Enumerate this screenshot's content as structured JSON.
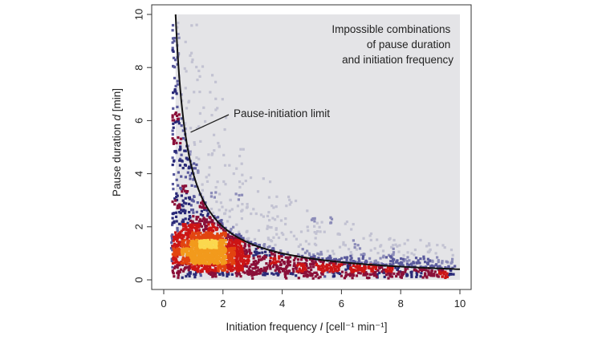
{
  "chart_data": {
    "type": "scatter",
    "xlabel": "Initiation frequency I [cell⁻¹ min⁻¹]",
    "xlabel_parts": {
      "main": "Initiation frequency ",
      "var": "I",
      "unit": "  [cell⁻¹ min⁻¹]"
    },
    "ylabel": "Pause duration d [min]",
    "ylabel_parts": {
      "main": "Pause duration ",
      "var": "d",
      "unit": " [min]"
    },
    "xlim": [
      0,
      10
    ],
    "ylim": [
      0,
      10
    ],
    "xticks": [
      "0",
      "2",
      "4",
      "6",
      "8",
      "10"
    ],
    "yticks": [
      "0",
      "2",
      "4",
      "6",
      "8",
      "10"
    ],
    "grid": false,
    "region": {
      "label_lines": [
        "Impossible combinations",
        "of pause duration",
        "and initiation frequency"
      ],
      "fill": "#e4e4e7"
    },
    "limit_curve": {
      "label": "Pause-initiation limit",
      "equation": "d = 4 / I",
      "x_range": [
        0.4,
        10
      ],
      "annotation_points_to": [
        0.8,
        5.5
      ],
      "color": "#111111"
    },
    "density_colors": [
      "#c2c2d2",
      "#8c8cb8",
      "#5a5a9c",
      "#2a2a78",
      "#8a0f38",
      "#cc1515",
      "#e24410",
      "#f29a1c",
      "#fbd84e"
    ]
  }
}
